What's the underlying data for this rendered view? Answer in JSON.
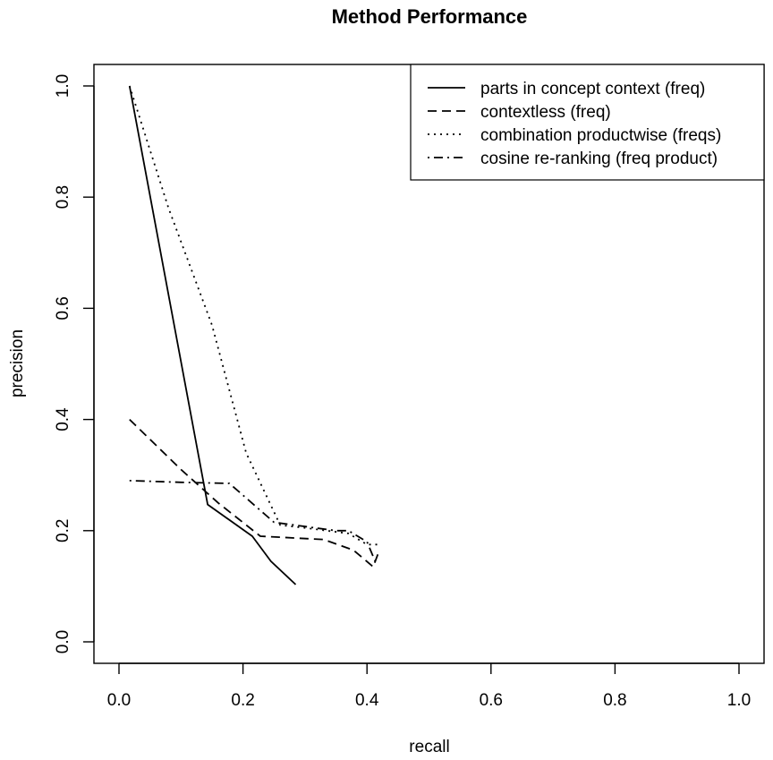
{
  "chart_data": {
    "type": "line",
    "title": "Method Performance",
    "xlabel": "recall",
    "ylabel": "precision",
    "xlim": [
      0,
      1
    ],
    "ylim": [
      0,
      1
    ],
    "xticks": [
      0.0,
      0.2,
      0.4,
      0.6,
      0.8,
      1.0
    ],
    "yticks": [
      0.0,
      0.2,
      0.4,
      0.6,
      0.8,
      1.0
    ],
    "xtick_labels": [
      "0.0",
      "0.2",
      "0.4",
      "0.6",
      "0.8",
      "1.0"
    ],
    "ytick_labels": [
      "0.0",
      "0.2",
      "0.4",
      "0.6",
      "0.8",
      "1.0"
    ],
    "grid": false,
    "legend_position": "top-right",
    "series": [
      {
        "name": "parts in concept context (freq)",
        "linestyle": "solid",
        "color": "#000000",
        "x": [
          0.017,
          0.143,
          0.215,
          0.245,
          0.285
        ],
        "y": [
          1.0,
          0.247,
          0.19,
          0.145,
          0.103
        ]
      },
      {
        "name": "contextless (freq)",
        "linestyle": "dashed",
        "color": "#000000",
        "x": [
          0.017,
          0.1,
          0.16,
          0.228,
          0.33,
          0.378,
          0.41,
          0.42
        ],
        "y": [
          0.4,
          0.31,
          0.25,
          0.19,
          0.184,
          0.165,
          0.135,
          0.165
        ]
      },
      {
        "name": "combination productwise (freqs)",
        "linestyle": "dotted",
        "color": "#000000",
        "x": [
          0.017,
          0.08,
          0.15,
          0.205,
          0.26,
          0.3,
          0.37,
          0.4,
          0.42
        ],
        "y": [
          1.0,
          0.78,
          0.57,
          0.34,
          0.21,
          0.205,
          0.195,
          0.175,
          0.175
        ]
      },
      {
        "name": "cosine re-ranking (freq product)",
        "linestyle": "dotdash",
        "color": "#000000",
        "x": [
          0.017,
          0.1,
          0.178,
          0.25,
          0.35,
          0.37,
          0.4,
          0.415
        ],
        "y": [
          0.29,
          0.287,
          0.285,
          0.215,
          0.2,
          0.2,
          0.18,
          0.14
        ]
      }
    ]
  }
}
